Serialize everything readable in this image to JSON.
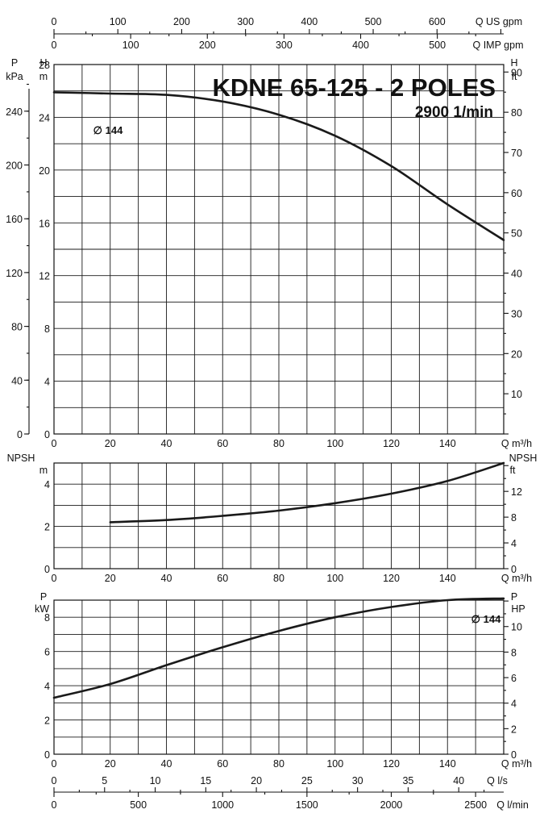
{
  "chart_data": [
    {
      "name": "head",
      "type": "line",
      "title": "KDNE 65-125 - 2 POLES",
      "subtitle": "2900 1/min",
      "xlabel": "Q m³/h",
      "xlim": [
        0,
        160
      ],
      "x_ticks": [
        "0",
        "20",
        "40",
        "60",
        "80",
        "100",
        "120",
        "140"
      ],
      "ylabel_left": "H",
      "ylabel_left_unit": "m",
      "ylim": [
        0,
        28
      ],
      "y_ticks": [
        "0",
        "4",
        "8",
        "12",
        "16",
        "20",
        "24",
        "28"
      ],
      "pressure_label": "P",
      "pressure_unit": "kPa",
      "pressure_ticks": [
        "0",
        "40",
        "80",
        "120",
        "160",
        "200",
        "240"
      ],
      "ylabel_right": "H",
      "ylabel_right_unit": "ft",
      "ft_ticks": [
        "10",
        "20",
        "30",
        "40",
        "50",
        "60",
        "70",
        "80",
        "90"
      ],
      "series": [
        {
          "name": "∅ 144",
          "x": [
            0,
            20,
            40,
            60,
            80,
            100,
            120,
            140,
            160
          ],
          "y": [
            25.9,
            25.8,
            25.7,
            25.2,
            24.2,
            22.6,
            20.3,
            17.4,
            14.7
          ]
        }
      ],
      "top_axes": [
        {
          "label": "Q US gpm",
          "ticks": [
            "0",
            "100",
            "200",
            "300",
            "400",
            "500",
            "600"
          ]
        },
        {
          "label": "Q IMP gpm",
          "ticks": [
            "0",
            "100",
            "200",
            "300",
            "400",
            "500"
          ]
        }
      ]
    },
    {
      "name": "npsh",
      "type": "line",
      "xlabel": "Q m³/h",
      "xlim": [
        0,
        160
      ],
      "x_ticks": [
        "0",
        "20",
        "40",
        "60",
        "80",
        "100",
        "120",
        "140"
      ],
      "ylabel_left": "NPSH",
      "ylabel_left_unit": "m",
      "ylim": [
        0,
        5
      ],
      "y_ticks": [
        "0",
        "2",
        "4"
      ],
      "ylabel_right": "NPSH",
      "ylabel_right_unit": "ft",
      "ft_ticks": [
        "0",
        "4",
        "8",
        "12"
      ],
      "series": [
        {
          "x": [
            20,
            40,
            60,
            80,
            100,
            120,
            140,
            160
          ],
          "y": [
            2.2,
            2.3,
            2.5,
            2.75,
            3.1,
            3.55,
            4.15,
            5.0
          ]
        }
      ]
    },
    {
      "name": "power",
      "type": "line",
      "xlabel": "Q m³/h",
      "xlim": [
        0,
        160
      ],
      "x_ticks": [
        "0",
        "20",
        "40",
        "60",
        "80",
        "100",
        "120",
        "140"
      ],
      "ylabel_left": "P",
      "ylabel_left_unit": "kW",
      "ylim": [
        0,
        9
      ],
      "y_ticks": [
        "0",
        "2",
        "4",
        "6",
        "8"
      ],
      "ylabel_right": "P",
      "ylabel_right_unit": "HP",
      "hp_ticks": [
        "0",
        "2",
        "4",
        "6",
        "8",
        "10"
      ],
      "series": [
        {
          "name": "∅ 144",
          "x": [
            0,
            20,
            40,
            60,
            80,
            100,
            120,
            140,
            160
          ],
          "y": [
            3.3,
            4.1,
            5.2,
            6.25,
            7.2,
            8.0,
            8.6,
            9.0,
            9.1
          ]
        }
      ],
      "bottom_axes": [
        {
          "label": "Q l/s",
          "ticks": [
            "0",
            "5",
            "10",
            "15",
            "20",
            "25",
            "30",
            "35",
            "40"
          ]
        },
        {
          "label": "Q l/min",
          "ticks": [
            "0",
            "500",
            "1000",
            "1500",
            "2000",
            "2500"
          ]
        }
      ]
    }
  ]
}
